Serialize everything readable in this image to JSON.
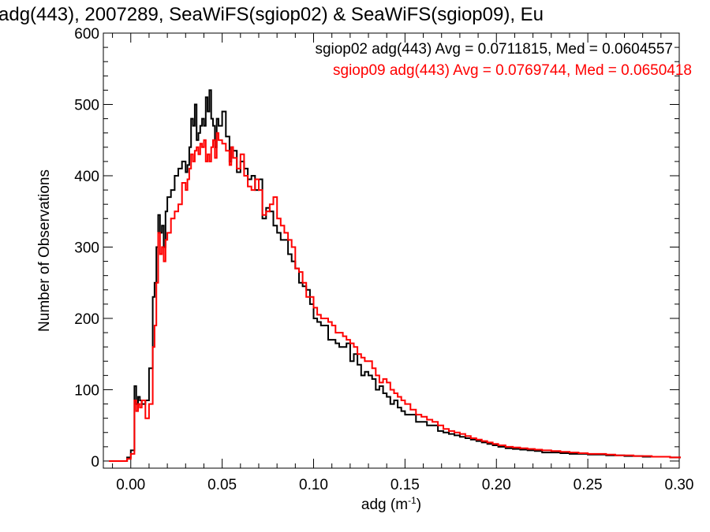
{
  "chart_data": {
    "type": "line",
    "title": "adg(443), 2007289, SeaWiFS(sgiop02) & SeaWiFS(sgiop09), Eu",
    "xlabel": "adg (m",
    "xlabel_sup": "-1",
    "xlabel_close": ")",
    "ylabel": "Number of Observations",
    "xlim": [
      -0.015,
      0.3
    ],
    "ylim": [
      -10,
      600
    ],
    "xticks": [
      0.0,
      0.05,
      0.1,
      0.15,
      0.2,
      0.25,
      0.3
    ],
    "xtick_labels": [
      "0.00",
      "0.05",
      "0.10",
      "0.15",
      "0.20",
      "0.25",
      "0.30"
    ],
    "yticks": [
      0,
      100,
      200,
      300,
      400,
      500,
      600
    ],
    "ytick_labels": [
      "0",
      "100",
      "200",
      "300",
      "400",
      "500",
      "600"
    ],
    "grid": false,
    "legend": [
      {
        "text": "sgiop02 adg(443) Avg = 0.0711815, Med = 0.0604557",
        "color": "#000000"
      },
      {
        "text": "sgiop09 adg(443) Avg = 0.0769744, Med = 0.0650418",
        "color": "#ff0000"
      }
    ],
    "series": [
      {
        "color": "#000000",
        "x": [
          -0.012,
          -0.008,
          -0.004,
          -0.002,
          0.0,
          0.002,
          0.003,
          0.004,
          0.005,
          0.006,
          0.008,
          0.01,
          0.012,
          0.013,
          0.014,
          0.015,
          0.016,
          0.017,
          0.018,
          0.019,
          0.02,
          0.022,
          0.024,
          0.026,
          0.028,
          0.03,
          0.031,
          0.032,
          0.033,
          0.034,
          0.035,
          0.036,
          0.037,
          0.038,
          0.039,
          0.04,
          0.041,
          0.042,
          0.043,
          0.044,
          0.045,
          0.046,
          0.047,
          0.048,
          0.05,
          0.052,
          0.054,
          0.055,
          0.056,
          0.058,
          0.06,
          0.062,
          0.064,
          0.066,
          0.068,
          0.07,
          0.072,
          0.074,
          0.076,
          0.078,
          0.08,
          0.082,
          0.084,
          0.086,
          0.088,
          0.09,
          0.092,
          0.094,
          0.096,
          0.098,
          0.1,
          0.102,
          0.104,
          0.106,
          0.108,
          0.11,
          0.112,
          0.114,
          0.116,
          0.118,
          0.12,
          0.122,
          0.124,
          0.126,
          0.128,
          0.13,
          0.132,
          0.134,
          0.136,
          0.138,
          0.14,
          0.142,
          0.144,
          0.146,
          0.148,
          0.15,
          0.153,
          0.156,
          0.159,
          0.162,
          0.165,
          0.168,
          0.171,
          0.174,
          0.177,
          0.18,
          0.183,
          0.186,
          0.189,
          0.192,
          0.195,
          0.198,
          0.201,
          0.205,
          0.209,
          0.213,
          0.217,
          0.221,
          0.225,
          0.23,
          0.235,
          0.24,
          0.245,
          0.25,
          0.255,
          0.26,
          0.265,
          0.27,
          0.275,
          0.28,
          0.285,
          0.29,
          0.295,
          0.3
        ],
        "y": [
          0,
          0,
          0,
          5,
          15,
          105,
          80,
          90,
          85,
          80,
          85,
          130,
          230,
          250,
          300,
          345,
          320,
          330,
          300,
          350,
          370,
          380,
          400,
          410,
          420,
          405,
          415,
          440,
          480,
          470,
          500,
          450,
          460,
          470,
          480,
          470,
          510,
          490,
          520,
          480,
          470,
          440,
          480,
          470,
          490,
          455,
          420,
          440,
          435,
          405,
          420,
          410,
          395,
          400,
          380,
          395,
          340,
          355,
          350,
          330,
          320,
          310,
          310,
          290,
          280,
          270,
          250,
          245,
          240,
          220,
          200,
          195,
          190,
          190,
          170,
          170,
          165,
          160,
          160,
          165,
          140,
          150,
          135,
          120,
          125,
          120,
          115,
          100,
          105,
          95,
          90,
          80,
          85,
          75,
          70,
          65,
          65,
          55,
          55,
          50,
          50,
          42,
          40,
          38,
          36,
          34,
          32,
          30,
          28,
          26,
          24,
          22,
          20,
          18,
          17,
          16,
          15,
          14,
          12,
          12,
          11,
          10,
          10,
          9,
          9,
          8,
          8,
          7,
          7,
          6,
          6,
          6,
          5,
          5
        ]
      },
      {
        "color": "#ff0000",
        "x": [
          -0.012,
          -0.008,
          -0.004,
          -0.002,
          0.0,
          0.002,
          0.003,
          0.004,
          0.005,
          0.006,
          0.008,
          0.01,
          0.012,
          0.013,
          0.014,
          0.015,
          0.016,
          0.017,
          0.018,
          0.019,
          0.02,
          0.022,
          0.024,
          0.026,
          0.028,
          0.03,
          0.031,
          0.032,
          0.033,
          0.034,
          0.035,
          0.036,
          0.037,
          0.038,
          0.039,
          0.04,
          0.041,
          0.042,
          0.043,
          0.044,
          0.045,
          0.046,
          0.047,
          0.048,
          0.05,
          0.052,
          0.054,
          0.055,
          0.056,
          0.058,
          0.06,
          0.062,
          0.064,
          0.066,
          0.068,
          0.07,
          0.072,
          0.074,
          0.076,
          0.078,
          0.08,
          0.082,
          0.084,
          0.086,
          0.088,
          0.09,
          0.092,
          0.094,
          0.096,
          0.098,
          0.1,
          0.102,
          0.104,
          0.106,
          0.108,
          0.11,
          0.112,
          0.114,
          0.116,
          0.118,
          0.12,
          0.122,
          0.124,
          0.126,
          0.128,
          0.13,
          0.132,
          0.134,
          0.136,
          0.138,
          0.14,
          0.142,
          0.144,
          0.146,
          0.148,
          0.15,
          0.153,
          0.156,
          0.159,
          0.162,
          0.165,
          0.168,
          0.171,
          0.174,
          0.177,
          0.18,
          0.183,
          0.186,
          0.189,
          0.192,
          0.195,
          0.198,
          0.201,
          0.205,
          0.209,
          0.213,
          0.217,
          0.221,
          0.225,
          0.23,
          0.235,
          0.24,
          0.245,
          0.25,
          0.255,
          0.26,
          0.265,
          0.27,
          0.275,
          0.28,
          0.285,
          0.29,
          0.295,
          0.3
        ],
        "y": [
          0,
          0,
          0,
          3,
          10,
          85,
          70,
          80,
          75,
          85,
          60,
          80,
          160,
          190,
          250,
          320,
          290,
          300,
          280,
          310,
          320,
          340,
          350,
          360,
          390,
          380,
          395,
          410,
          430,
          420,
          435,
          440,
          430,
          445,
          440,
          450,
          420,
          430,
          420,
          440,
          450,
          425,
          460,
          450,
          445,
          435,
          415,
          440,
          425,
          410,
          430,
          400,
          385,
          380,
          395,
          380,
          345,
          350,
          360,
          370,
          340,
          330,
          320,
          310,
          300,
          270,
          265,
          250,
          230,
          230,
          215,
          205,
          200,
          200,
          195,
          190,
          180,
          180,
          175,
          170,
          165,
          160,
          150,
          145,
          140,
          140,
          130,
          120,
          110,
          115,
          110,
          100,
          95,
          90,
          85,
          80,
          72,
          65,
          62,
          58,
          55,
          50,
          45,
          42,
          40,
          38,
          35,
          32,
          30,
          28,
          26,
          24,
          22,
          20,
          19,
          18,
          17,
          16,
          15,
          14,
          13,
          12,
          11,
          10,
          10,
          9,
          8,
          8,
          7,
          7,
          6,
          6,
          5,
          5
        ]
      }
    ]
  }
}
